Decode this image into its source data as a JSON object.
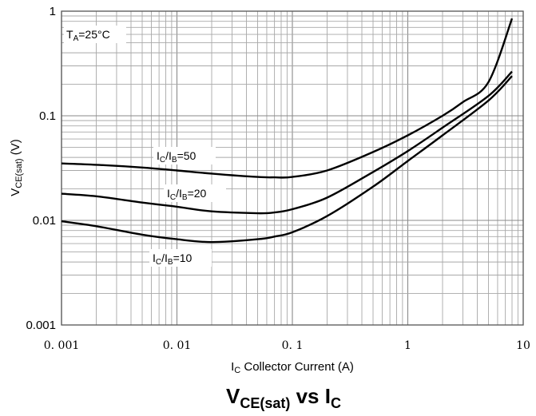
{
  "chart_data": {
    "type": "line",
    "title": {
      "main": "V",
      "sub": "CE(sat)",
      "middle": " vs I",
      "tail": "C"
    },
    "xlabel": {
      "main": "I",
      "sub": "C",
      "rest": " Collector Current (A)"
    },
    "ylabel": {
      "main": "V",
      "sub": "CE(sat)",
      "rest": " (V)"
    },
    "x_scale": "log",
    "y_scale": "log",
    "xlim": [
      0.001,
      10
    ],
    "ylim": [
      0.001,
      1
    ],
    "x_ticks": [
      {
        "value": 0.001,
        "label": "0. 001"
      },
      {
        "value": 0.01,
        "label": "0. 01"
      },
      {
        "value": 0.1,
        "label": "0. 1"
      },
      {
        "value": 1,
        "label": "1"
      },
      {
        "value": 10,
        "label": "10"
      }
    ],
    "y_ticks": [
      {
        "value": 0.001,
        "label": "0.001"
      },
      {
        "value": 0.01,
        "label": "0.01"
      },
      {
        "value": 0.1,
        "label": "0.1"
      },
      {
        "value": 1,
        "label": "1"
      }
    ],
    "grid": true,
    "annotation": {
      "main": "T",
      "sub": "A",
      "rest": "=25°C"
    },
    "series": [
      {
        "name": {
          "a": "I",
          "a_sub": "C",
          "b": "/I",
          "b_sub": "B",
          "rest": "=50"
        },
        "points": [
          [
            0.001,
            0.035
          ],
          [
            0.002,
            0.034
          ],
          [
            0.005,
            0.032
          ],
          [
            0.01,
            0.03
          ],
          [
            0.02,
            0.028
          ],
          [
            0.05,
            0.026
          ],
          [
            0.07,
            0.0258
          ],
          [
            0.1,
            0.026
          ],
          [
            0.2,
            0.03
          ],
          [
            0.5,
            0.045
          ],
          [
            1,
            0.065
          ],
          [
            2,
            0.1
          ],
          [
            3,
            0.135
          ],
          [
            5,
            0.21
          ],
          [
            8,
            0.85
          ]
        ]
      },
      {
        "name": {
          "a": "I",
          "a_sub": "C",
          "b": "/I",
          "b_sub": "B",
          "rest": "=20"
        },
        "points": [
          [
            0.001,
            0.018
          ],
          [
            0.002,
            0.017
          ],
          [
            0.005,
            0.0148
          ],
          [
            0.01,
            0.0135
          ],
          [
            0.02,
            0.0122
          ],
          [
            0.05,
            0.0117
          ],
          [
            0.07,
            0.0119
          ],
          [
            0.1,
            0.0128
          ],
          [
            0.2,
            0.0165
          ],
          [
            0.5,
            0.029
          ],
          [
            1,
            0.046
          ],
          [
            2,
            0.077
          ],
          [
            5,
            0.155
          ],
          [
            8,
            0.265
          ]
        ]
      },
      {
        "name": {
          "a": "I",
          "a_sub": "C",
          "b": "/I",
          "b_sub": "B",
          "rest": "=10"
        },
        "points": [
          [
            0.001,
            0.0098
          ],
          [
            0.002,
            0.0088
          ],
          [
            0.005,
            0.0073
          ],
          [
            0.01,
            0.0066
          ],
          [
            0.02,
            0.0062
          ],
          [
            0.05,
            0.0066
          ],
          [
            0.07,
            0.007
          ],
          [
            0.1,
            0.0077
          ],
          [
            0.2,
            0.011
          ],
          [
            0.5,
            0.021
          ],
          [
            1,
            0.037
          ],
          [
            2,
            0.065
          ],
          [
            5,
            0.14
          ],
          [
            8,
            0.24
          ]
        ]
      }
    ]
  }
}
